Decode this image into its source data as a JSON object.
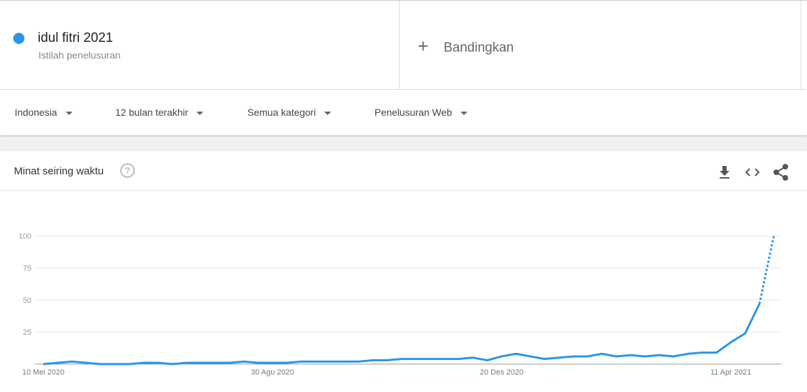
{
  "compare": "Bandingkan",
  "filters": [
    "Indonesia",
    "12 bulan terakhir",
    "Semua kategori",
    "Penelusuran Web"
  ],
  "search_term_subtitle": "Istilah penelusuran",
  "chart_data": {
    "type": "line",
    "title": "Minat seiring waktu",
    "categories": [
      "10 Mei 2020",
      null,
      null,
      null,
      null,
      null,
      null,
      null,
      null,
      null,
      null,
      null,
      null,
      null,
      null,
      null,
      "30 Agu 2020",
      null,
      null,
      null,
      null,
      null,
      null,
      null,
      null,
      null,
      null,
      null,
      null,
      null,
      null,
      null,
      "20 Des 2020",
      null,
      null,
      null,
      null,
      null,
      null,
      null,
      null,
      null,
      null,
      null,
      null,
      null,
      null,
      null,
      "11 Apr 2021",
      null,
      null,
      null
    ],
    "series": [
      {
        "name": "idul fitri 2021",
        "color": "#2b95e9",
        "values": [
          0,
          1,
          2,
          1,
          0,
          0,
          0,
          1,
          1,
          0,
          1,
          1,
          1,
          1,
          2,
          1,
          1,
          1,
          2,
          2,
          2,
          2,
          2,
          3,
          3,
          4,
          4,
          4,
          4,
          4,
          5,
          3,
          6,
          8,
          6,
          4,
          5,
          6,
          6,
          8,
          6,
          7,
          6,
          7,
          6,
          8,
          9,
          9,
          17,
          24,
          47,
          100
        ]
      }
    ],
    "ylim": [
      0,
      100
    ],
    "yticks": [
      25,
      50,
      75,
      100
    ],
    "grid": true,
    "last_segment": "dotted"
  }
}
